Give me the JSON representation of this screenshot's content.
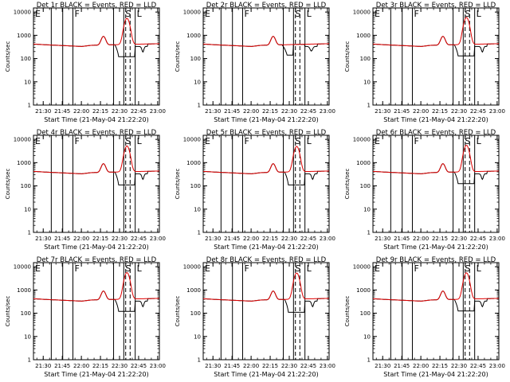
{
  "chart_data": [
    {
      "type": "line",
      "title": "Det 1r BLACK = Events, RED = LLD",
      "xlabel": "Start Time (21-May-04 21:22:20)",
      "ylabel": "Counts/sec",
      "flare": {
        "peak": 5000,
        "lowBlack": 120
      },
      "boundaries": [
        {
          "label": "E",
          "t": 0
        },
        {
          "label": "F",
          "t": 31
        },
        {
          "label": "S",
          "t": 71
        },
        {
          "label": "L",
          "t": 80
        }
      ],
      "dashed": [
        72.5,
        76
      ]
    },
    {
      "type": "line",
      "title": "Det 2r BLACK = Events, RED = LLD",
      "xlabel": "Start Time (21-May-04 21:22:20)",
      "ylabel": "Counts/sec",
      "flare": null,
      "boundaries": [
        {
          "label": "E",
          "t": 0
        },
        {
          "label": "F",
          "t": 31
        },
        {
          "label": "S",
          "t": 71
        },
        {
          "label": "L",
          "t": 80
        }
      ],
      "dashed": [
        72.5,
        76
      ]
    },
    {
      "type": "line",
      "title": "Det 3r BLACK = Events, RED = LLD",
      "xlabel": "Start Time (21-May-04 21:22:20)",
      "ylabel": "Counts/sec",
      "flare": {
        "peak": 5500,
        "lowBlack": 130
      },
      "boundaries": [
        {
          "label": "E",
          "t": 0
        },
        {
          "label": "F",
          "t": 31
        },
        {
          "label": "S",
          "t": 71
        },
        {
          "label": "L",
          "t": 80
        }
      ],
      "dashed": [
        72.5,
        76
      ]
    },
    {
      "type": "line",
      "title": "Det 4r BLACK = Events, RED = LLD",
      "xlabel": "Start Time (21-May-04 21:22:20)",
      "ylabel": "Counts/sec",
      "flare": {
        "peak": 4800,
        "lowBlack": 110
      },
      "boundaries": [
        {
          "label": "E",
          "t": 0
        },
        {
          "label": "F",
          "t": 31
        },
        {
          "label": "S",
          "t": 71
        },
        {
          "label": "L",
          "t": 80
        }
      ],
      "dashed": [
        72.5,
        76
      ]
    },
    {
      "type": "line",
      "title": "Det 5r BLACK = Events, RED = LLD",
      "xlabel": "Start Time (21-May-04 21:22:20)",
      "ylabel": "Counts/sec",
      "flare": {
        "peak": 4600,
        "lowBlack": 110
      },
      "boundaries": [
        {
          "label": "E",
          "t": 0
        },
        {
          "label": "F",
          "t": 31
        },
        {
          "label": "S",
          "t": 71
        },
        {
          "label": "L",
          "t": 80
        }
      ],
      "dashed": [
        72.5,
        76
      ]
    },
    {
      "type": "line",
      "title": "Det 6r BLACK = Events, RED = LLD",
      "xlabel": "Start Time (21-May-04 21:22:20)",
      "ylabel": "Counts/sec",
      "flare": {
        "peak": 5200,
        "lowBlack": 125
      },
      "boundaries": [
        {
          "label": "E",
          "t": 0
        },
        {
          "label": "F",
          "t": 31
        },
        {
          "label": "S",
          "t": 71
        },
        {
          "label": "L",
          "t": 80
        }
      ],
      "dashed": [
        72.5,
        76
      ]
    },
    {
      "type": "line",
      "title": "Det 7r BLACK = Events, RED = LLD",
      "xlabel": "Start Time (21-May-04 21:22:20)",
      "ylabel": "Counts/sec",
      "flare": {
        "peak": 5200,
        "lowBlack": 120
      },
      "boundaries": [
        {
          "label": "E",
          "t": 0
        },
        {
          "label": "F",
          "t": 31
        },
        {
          "label": "S",
          "t": 71
        },
        {
          "label": "L",
          "t": 80
        }
      ],
      "dashed": [
        72.5,
        76
      ]
    },
    {
      "type": "line",
      "title": "Det 8r BLACK = Events, RED = LLD",
      "xlabel": "Start Time (21-May-04 21:22:20)",
      "ylabel": "Counts/sec",
      "flare": {
        "peak": 5000,
        "lowBlack": 110
      },
      "boundaries": [
        {
          "label": "E",
          "t": 0
        },
        {
          "label": "F",
          "t": 31
        },
        {
          "label": "S",
          "t": 71
        },
        {
          "label": "L",
          "t": 80
        }
      ],
      "dashed": [
        72.5,
        76
      ]
    },
    {
      "type": "line",
      "title": "Det 9r BLACK = Events, RED = LLD",
      "xlabel": "Start Time (21-May-04 21:22:20)",
      "ylabel": "Counts/sec",
      "flare": {
        "peak": 5100,
        "lowBlack": 125
      },
      "boundaries": [
        {
          "label": "E",
          "t": 0
        },
        {
          "label": "F",
          "t": 31
        },
        {
          "label": "S",
          "t": 71
        },
        {
          "label": "L",
          "t": 80
        }
      ],
      "dashed": [
        72.5,
        76
      ]
    }
  ],
  "axes": {
    "x_ticks": [
      "21:30",
      "21:45",
      "22:00",
      "22:15",
      "22:30",
      "22:45",
      "23:00"
    ],
    "x_tick_minutes": [
      7.67,
      22.67,
      37.67,
      52.67,
      67.67,
      82.67,
      97.67
    ],
    "x_range_minutes": [
      0,
      99
    ],
    "y_ticks": [
      "1",
      "10",
      "100",
      "1000",
      "10000"
    ],
    "y_range": [
      1,
      15000
    ],
    "y_scale": "log",
    "grid": false
  },
  "series_colors": {
    "events": "#000000",
    "lld": "#e00000"
  },
  "baseline": {
    "start": 420,
    "min": 330,
    "bump_peak": 900
  }
}
